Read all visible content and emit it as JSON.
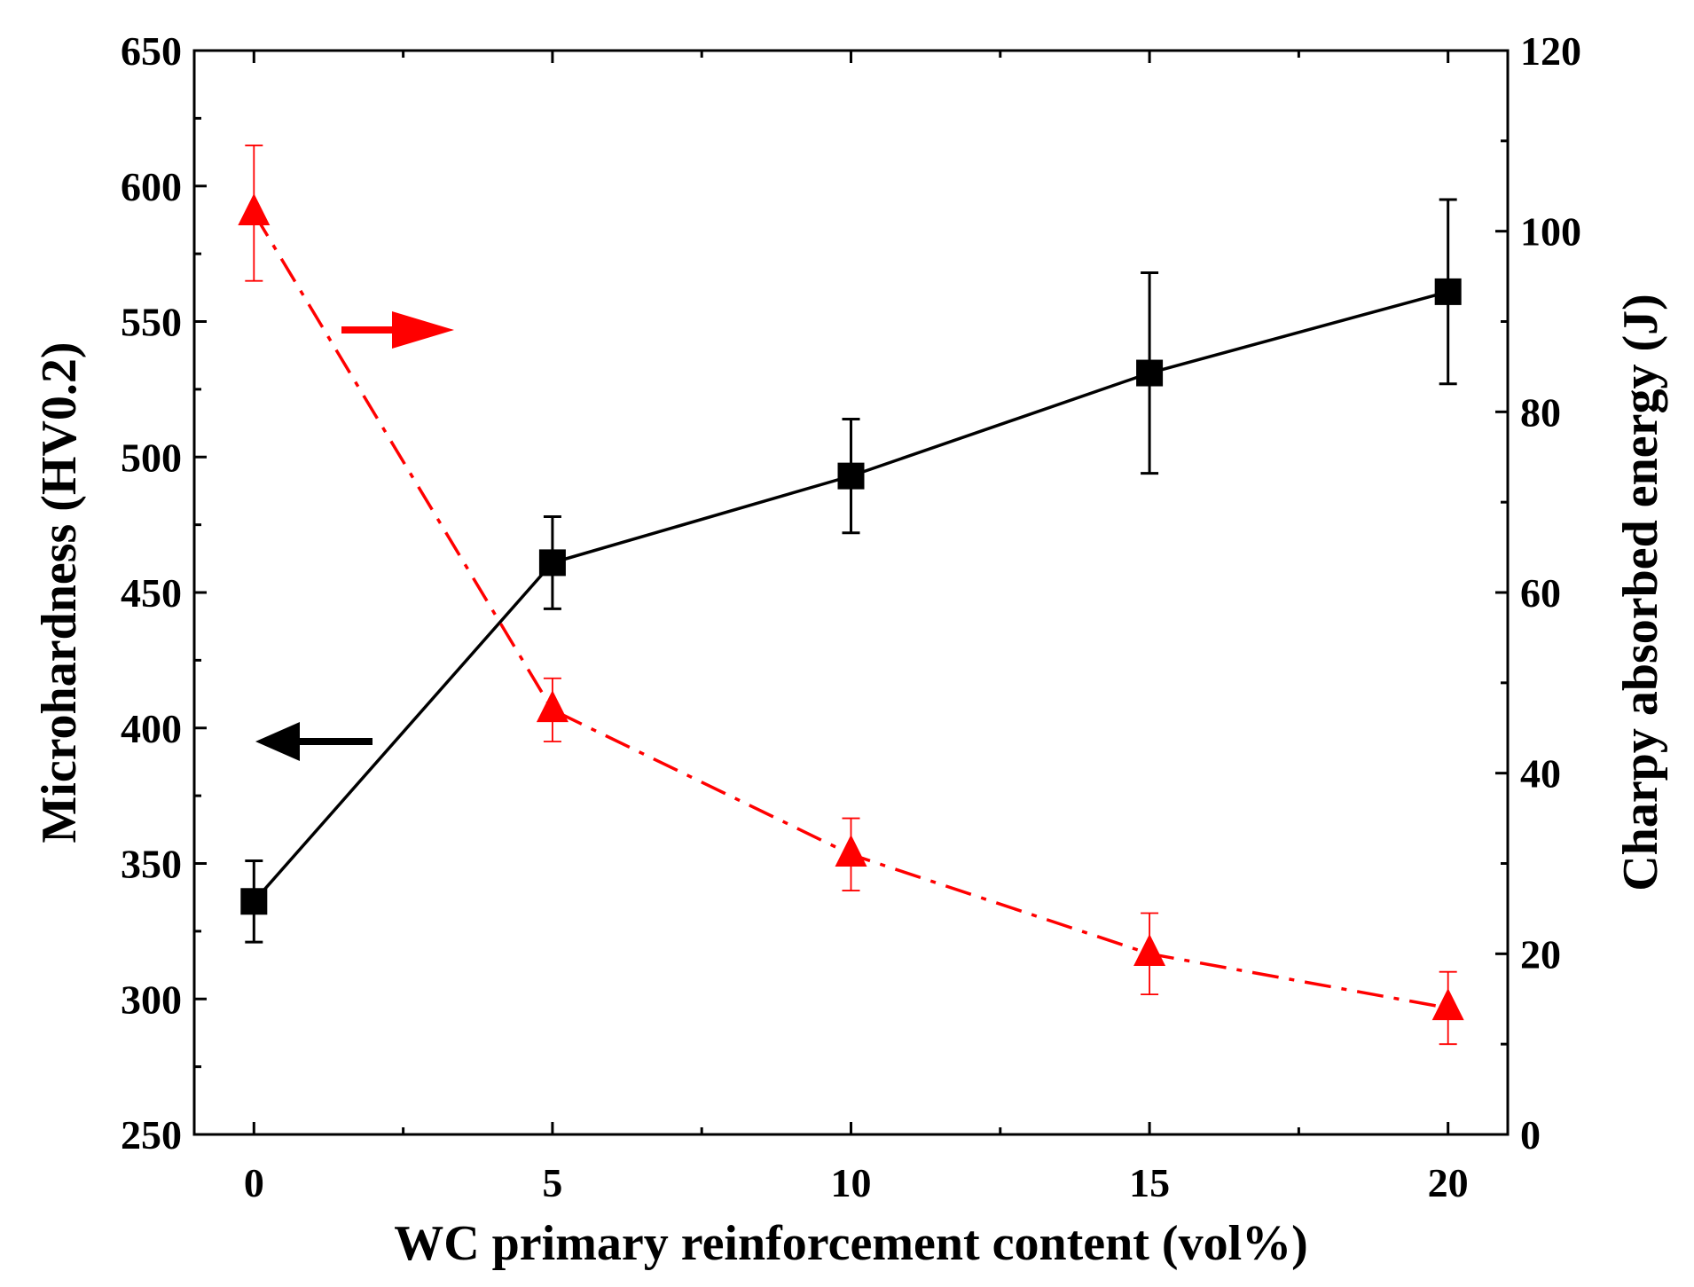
{
  "chart_data": {
    "type": "line",
    "title": "",
    "xlabel": "WC primary reinforcement content (vol%)",
    "ylabel_left": "Microhardness (HV0.2)",
    "ylabel_right": "Charpy absorbed energy (J)",
    "xlim": [
      -1,
      21
    ],
    "ylim_left": [
      250,
      650
    ],
    "ylim_right": [
      0,
      120
    ],
    "x_ticks": [
      0,
      5,
      10,
      15,
      20
    ],
    "y_left_ticks": [
      250,
      300,
      350,
      400,
      450,
      500,
      550,
      600,
      650
    ],
    "y_right_ticks": [
      0,
      20,
      40,
      60,
      80,
      100,
      120
    ],
    "grid": false,
    "series": [
      {
        "name": "Microhardness",
        "axis": "left",
        "color": "#000000",
        "marker": "square",
        "line_style": "solid",
        "x": [
          0,
          5,
          10,
          15,
          20
        ],
        "values": [
          336,
          461,
          493,
          531,
          561
        ],
        "error": [
          15,
          17,
          21,
          37,
          34
        ]
      },
      {
        "name": "Charpy absorbed energy",
        "axis": "right",
        "color": "#ff0000",
        "marker": "triangle",
        "line_style": "dash-dot",
        "x": [
          0,
          5,
          10,
          15,
          20
        ],
        "values": [
          102,
          47,
          31,
          20,
          14
        ],
        "error": [
          7.5,
          3.5,
          4,
          4.5,
          4
        ]
      }
    ],
    "annotations": [
      {
        "type": "arrow",
        "direction": "left",
        "points_to": "left axis",
        "color": "#000000"
      },
      {
        "type": "arrow",
        "direction": "right",
        "points_to": "right axis",
        "color": "#ff0000"
      }
    ]
  }
}
